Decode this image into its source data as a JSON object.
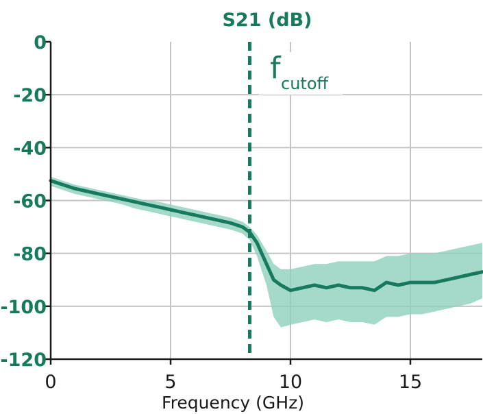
{
  "chart_data": {
    "type": "line",
    "title": "S21 (dB)",
    "xlabel": "Frequency (GHz)",
    "ylabel": "",
    "xlim": [
      0,
      18
    ],
    "ylim": [
      -120,
      0
    ],
    "x_ticks": [
      0,
      5,
      10,
      15
    ],
    "x_tick_labels": [
      "0",
      "5",
      "10",
      "15"
    ],
    "y_ticks": [
      0,
      -20,
      -40,
      -60,
      -80,
      -100,
      -120
    ],
    "y_tick_labels": [
      "0",
      "-20",
      "-40",
      "-60",
      "-80",
      "-100",
      "-120"
    ],
    "grid": true,
    "colors": {
      "line": "#177a5e",
      "band": "#8fd1bd",
      "text": "#177a5e",
      "grid": "#c4c4c4"
    },
    "annotation": {
      "main": "f",
      "sub": "cutoff",
      "x": 8.3,
      "style": "dashed vertical line"
    },
    "series": [
      {
        "x": [
          0,
          0.5,
          1,
          1.5,
          2,
          2.5,
          3,
          3.5,
          4,
          4.5,
          5,
          5.5,
          6,
          6.5,
          7,
          7.5,
          8,
          8.3,
          8.6,
          9,
          9.3,
          9.6,
          10,
          10.5,
          11,
          11.5,
          12,
          12.5,
          13,
          13.5,
          14,
          14.5,
          15,
          15.5,
          16,
          16.5,
          17,
          17.5,
          18
        ],
        "y": [
          -52.5,
          -54,
          -55.5,
          -56.5,
          -57.5,
          -58.5,
          -59.5,
          -60.5,
          -61.5,
          -62.5,
          -63.5,
          -64.5,
          -65.5,
          -66.5,
          -67.5,
          -68.5,
          -70,
          -72,
          -76,
          -84,
          -90,
          -92,
          -94,
          -93,
          -92,
          -93,
          -92,
          -93,
          -93,
          -94,
          -91,
          -92,
          -91,
          -91,
          -91,
          -90,
          -89,
          -88,
          -87
        ],
        "band_lower": [
          -54.5,
          -56,
          -57.5,
          -58.5,
          -59.5,
          -60.5,
          -61.5,
          -63,
          -64,
          -65,
          -66,
          -67,
          -68,
          -69,
          -70,
          -71,
          -72.5,
          -75,
          -81,
          -92,
          -104,
          -108,
          -107,
          -106,
          -105,
          -106,
          -105,
          -106,
          -106,
          -107,
          -104,
          -104,
          -103,
          -103,
          -102,
          -101,
          -100,
          -99,
          -97
        ],
        "band_upper": [
          -51,
          -52.5,
          -54,
          -55,
          -56,
          -57,
          -58,
          -59,
          -60,
          -60.5,
          -61.5,
          -62.5,
          -63.5,
          -64.5,
          -65.5,
          -66.5,
          -68,
          -70,
          -73,
          -79,
          -84,
          -86,
          -86,
          -85,
          -84,
          -84,
          -83,
          -83,
          -83,
          -83,
          -81,
          -81,
          -80,
          -80,
          -80,
          -79,
          -78,
          -77,
          -76
        ]
      }
    ]
  }
}
